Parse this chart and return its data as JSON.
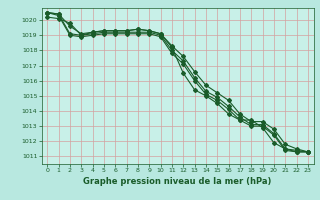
{
  "title": "Graphe pression niveau de la mer (hPa)",
  "bg_color": "#b8e8e0",
  "plot_bg_color": "#c8f0e8",
  "grid_color": "#d4a0a0",
  "line_color": "#1a5c2a",
  "text_color": "#1a5c2a",
  "xlim": [
    -0.5,
    23.5
  ],
  "ylim": [
    1010.5,
    1020.8
  ],
  "xtick_labels": [
    "0",
    "1",
    "2",
    "3",
    "4",
    "5",
    "6",
    "7",
    "8",
    "9",
    "10",
    "11",
    "12",
    "13",
    "14",
    "15",
    "16",
    "17",
    "18",
    "19",
    "20",
    "21",
    "22",
    "23"
  ],
  "xticks": [
    0,
    1,
    2,
    3,
    4,
    5,
    6,
    7,
    8,
    9,
    10,
    11,
    12,
    13,
    14,
    15,
    16,
    17,
    18,
    19,
    20,
    21,
    22,
    23
  ],
  "yticks": [
    1011,
    1012,
    1013,
    1014,
    1015,
    1016,
    1017,
    1018,
    1019,
    1020
  ],
  "series": [
    [
      1020.5,
      1020.4,
      1019.6,
      1019.1,
      1019.2,
      1019.3,
      1019.3,
      1019.3,
      1019.4,
      1019.3,
      1019.1,
      1018.3,
      1017.6,
      1016.6,
      1015.7,
      1015.2,
      1014.7,
      1013.8,
      1013.3,
      1013.3,
      1012.8,
      1011.8,
      1011.5,
      1011.3
    ],
    [
      1020.5,
      1020.4,
      1019.1,
      1019.0,
      1019.1,
      1019.2,
      1019.2,
      1019.2,
      1019.2,
      1019.2,
      1019.0,
      1018.0,
      1017.3,
      1016.2,
      1015.3,
      1014.9,
      1014.3,
      1013.6,
      1013.1,
      1013.1,
      1012.5,
      1011.5,
      1011.4,
      1011.3
    ],
    [
      1020.5,
      1020.3,
      1019.0,
      1018.9,
      1019.0,
      1019.1,
      1019.1,
      1019.1,
      1019.1,
      1019.1,
      1018.9,
      1017.8,
      1017.1,
      1016.0,
      1015.1,
      1014.7,
      1014.1,
      1013.4,
      1013.0,
      1013.0,
      1012.4,
      1011.4,
      1011.3,
      1011.3
    ],
    [
      1020.2,
      1020.1,
      1019.8,
      1019.0,
      1019.2,
      1019.3,
      1019.3,
      1019.3,
      1019.4,
      1019.3,
      1019.1,
      1018.2,
      1016.5,
      1015.4,
      1015.0,
      1014.5,
      1013.8,
      1013.4,
      1013.4,
      1012.9,
      1011.9,
      1011.5,
      1011.3,
      1011.3
    ]
  ],
  "marker": "D",
  "markersize": 2.0,
  "linewidth": 0.8,
  "title_fontsize": 6.0,
  "tick_fontsize": 4.5
}
